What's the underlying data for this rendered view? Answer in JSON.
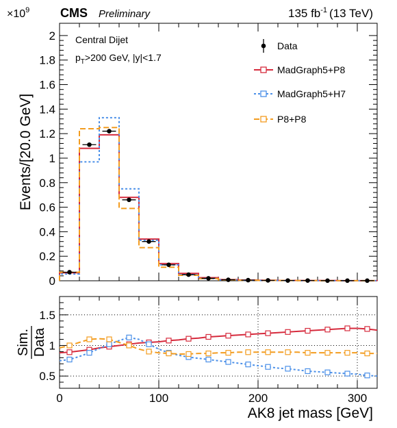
{
  "header": {
    "exponent_base": "×10",
    "exponent_power": "9",
    "experiment": "CMS",
    "status": "Preliminary",
    "lumi": "135 fb",
    "lumi_power": "-1",
    "energy": "(13 TeV)"
  },
  "annotations": {
    "category": "Central Dijet",
    "selection_p": "p",
    "selection_sub": "T",
    "selection_rest": ">200 GeV, |y|<1.7"
  },
  "colors": {
    "data": "#000000",
    "madgraph_p8": "#d62a3c",
    "madgraph_h7": "#4a8fe8",
    "p8_p8": "#f39c1f"
  },
  "chart_data": [
    {
      "type": "line",
      "style": "histogram-step",
      "xlabel": "AK8 jet mass [GeV]",
      "ylabel": "Events/[20.0 GeV]",
      "xlim": [
        0,
        320
      ],
      "ylim": [
        0,
        2.1
      ],
      "yscale_factor": "×10^9",
      "bin_edges": [
        0,
        20,
        40,
        60,
        80,
        100,
        120,
        140,
        160,
        180,
        200,
        220,
        240,
        260,
        280,
        300,
        320
      ],
      "legend_position": "top-right",
      "grid": false,
      "yticks": [
        0,
        0.2,
        0.4,
        0.6,
        0.8,
        1,
        1.2,
        1.4,
        1.6,
        1.8,
        2
      ],
      "series": [
        {
          "name": "Data",
          "kind": "points",
          "color_key": "data",
          "x": [
            10,
            30,
            50,
            70,
            90,
            110,
            130,
            150,
            170,
            190,
            210,
            230,
            250,
            270,
            290,
            310
          ],
          "values": [
            0.07,
            1.11,
            1.22,
            0.66,
            0.32,
            0.13,
            0.05,
            0.02,
            0.008,
            0.005,
            0.003,
            0.002,
            0.002,
            0.001,
            0.001,
            0.001
          ]
        },
        {
          "name": "MadGraph5+P8",
          "kind": "step",
          "color_key": "madgraph_p8",
          "dash": "",
          "values": [
            0.065,
            1.08,
            1.19,
            0.68,
            0.34,
            0.14,
            0.06,
            0.025,
            0.01,
            0.006,
            0.004,
            0.003,
            0.002,
            0.002,
            0.001,
            0.001
          ]
        },
        {
          "name": "MadGraph5+H7",
          "kind": "step",
          "color_key": "madgraph_h7",
          "dash": "3,3",
          "values": [
            0.055,
            0.97,
            1.33,
            0.75,
            0.33,
            0.13,
            0.05,
            0.018,
            0.007,
            0.004,
            0.002,
            0.0015,
            0.001,
            0.001,
            0.0006,
            0.0005
          ]
        },
        {
          "name": "P8+P8",
          "kind": "step",
          "color_key": "p8_p8",
          "dash": "8,4",
          "values": [
            0.07,
            1.24,
            1.25,
            0.59,
            0.27,
            0.11,
            0.045,
            0.018,
            0.007,
            0.004,
            0.003,
            0.002,
            0.0015,
            0.001,
            0.001,
            0.0008
          ]
        }
      ]
    },
    {
      "type": "line",
      "xlabel": "AK8 jet mass [GeV]",
      "ylabel_top": "Sim.",
      "ylabel_bottom": "Data",
      "xlim": [
        0,
        320
      ],
      "ylim": [
        0.3,
        1.8
      ],
      "xticks": [
        0,
        100,
        200,
        300
      ],
      "yticks": [
        0.5,
        1,
        1.5
      ],
      "grid": true,
      "reference_line": 1,
      "x": [
        0,
        10,
        20,
        30,
        40,
        50,
        60,
        70,
        80,
        90,
        100,
        110,
        120,
        130,
        140,
        150,
        160,
        170,
        180,
        190,
        200,
        210,
        220,
        230,
        240,
        250,
        260,
        270,
        280,
        290,
        300,
        310,
        320
      ],
      "series": [
        {
          "name": "MadGraph5+P8",
          "color_key": "madgraph_p8",
          "dash": "",
          "values": [
            0.88,
            0.89,
            0.91,
            0.93,
            0.96,
            0.98,
            1.0,
            1.02,
            1.04,
            1.05,
            1.06,
            1.08,
            1.09,
            1.11,
            1.12,
            1.14,
            1.15,
            1.16,
            1.17,
            1.18,
            1.19,
            1.2,
            1.21,
            1.22,
            1.23,
            1.24,
            1.25,
            1.26,
            1.27,
            1.28,
            1.28,
            1.27,
            1.25
          ]
        },
        {
          "name": "MadGraph5+H7",
          "color_key": "madgraph_h7",
          "dash": "3,3",
          "values": [
            0.75,
            0.77,
            0.82,
            0.88,
            0.95,
            1.02,
            1.08,
            1.13,
            1.1,
            1.02,
            0.94,
            0.88,
            0.84,
            0.81,
            0.79,
            0.77,
            0.75,
            0.73,
            0.71,
            0.69,
            0.67,
            0.65,
            0.63,
            0.62,
            0.6,
            0.58,
            0.57,
            0.56,
            0.55,
            0.54,
            0.53,
            0.51,
            0.5
          ]
        },
        {
          "name": "P8+P8",
          "color_key": "p8_p8",
          "dash": "8,4",
          "values": [
            0.96,
            1.0,
            1.05,
            1.1,
            1.11,
            1.1,
            1.05,
            1.0,
            0.94,
            0.9,
            0.88,
            0.87,
            0.86,
            0.86,
            0.87,
            0.87,
            0.88,
            0.88,
            0.89,
            0.89,
            0.89,
            0.89,
            0.89,
            0.89,
            0.89,
            0.88,
            0.88,
            0.88,
            0.88,
            0.88,
            0.88,
            0.87,
            0.87
          ]
        }
      ]
    }
  ]
}
